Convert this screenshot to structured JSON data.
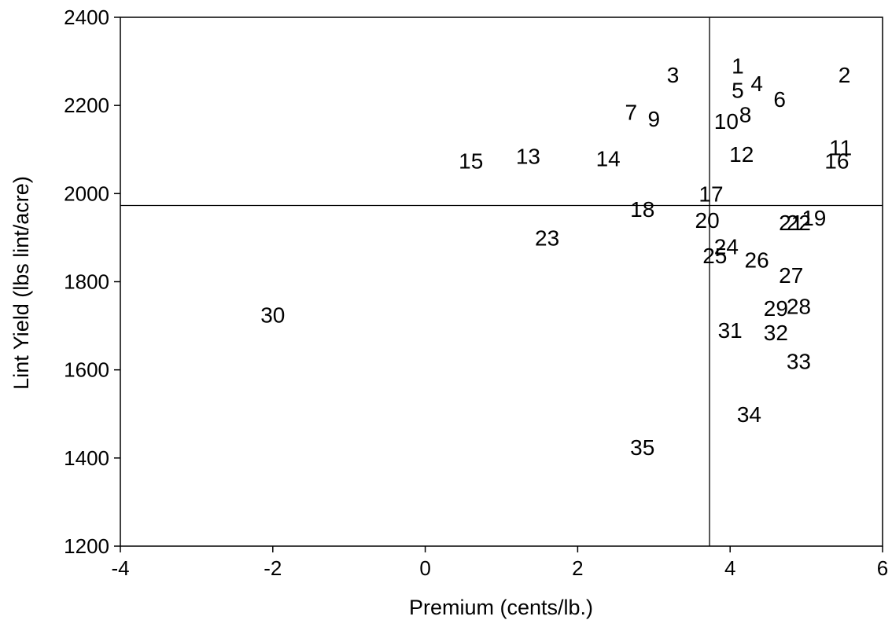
{
  "chart_data": {
    "type": "scatter",
    "title": "",
    "xlabel": "Premium (cents/lb.)",
    "ylabel": "Lint Yield (lbs lint/acre)",
    "xlim": [
      -4,
      6
    ],
    "ylim": [
      1200,
      2400
    ],
    "xticks": [
      -4,
      -2,
      0,
      2,
      4,
      6
    ],
    "yticks": [
      1200,
      1400,
      1600,
      1800,
      2000,
      2200,
      2400
    ],
    "grid": false,
    "reference_lines": {
      "x": 3.73,
      "y": 1973
    },
    "points": [
      {
        "label": "1",
        "x": 4.1,
        "y": 2290
      },
      {
        "label": "2",
        "x": 5.5,
        "y": 2270
      },
      {
        "label": "3",
        "x": 3.25,
        "y": 2270
      },
      {
        "label": "4",
        "x": 4.35,
        "y": 2250
      },
      {
        "label": "5",
        "x": 4.1,
        "y": 2235
      },
      {
        "label": "6",
        "x": 4.65,
        "y": 2215
      },
      {
        "label": "7",
        "x": 2.7,
        "y": 2185
      },
      {
        "label": "8",
        "x": 4.2,
        "y": 2180
      },
      {
        "label": "9",
        "x": 3.0,
        "y": 2170
      },
      {
        "label": "10",
        "x": 3.95,
        "y": 2165
      },
      {
        "label": "11",
        "x": 5.45,
        "y": 2105
      },
      {
        "label": "12",
        "x": 4.15,
        "y": 2090
      },
      {
        "label": "13",
        "x": 1.35,
        "y": 2085
      },
      {
        "label": "14",
        "x": 2.4,
        "y": 2080
      },
      {
        "label": "15",
        "x": 0.6,
        "y": 2075
      },
      {
        "label": "16",
        "x": 5.4,
        "y": 2075
      },
      {
        "label": "17",
        "x": 3.75,
        "y": 2000
      },
      {
        "label": "18",
        "x": 2.85,
        "y": 1965
      },
      {
        "label": "19",
        "x": 5.1,
        "y": 1945
      },
      {
        "label": "20",
        "x": 3.7,
        "y": 1940
      },
      {
        "label": "21",
        "x": 4.8,
        "y": 1935
      },
      {
        "label": "22",
        "x": 4.9,
        "y": 1935
      },
      {
        "label": "23",
        "x": 1.6,
        "y": 1900
      },
      {
        "label": "24",
        "x": 3.95,
        "y": 1880
      },
      {
        "label": "25",
        "x": 3.8,
        "y": 1860
      },
      {
        "label": "26",
        "x": 4.35,
        "y": 1850
      },
      {
        "label": "27",
        "x": 4.8,
        "y": 1815
      },
      {
        "label": "28",
        "x": 4.9,
        "y": 1745
      },
      {
        "label": "29",
        "x": 4.6,
        "y": 1740
      },
      {
        "label": "30",
        "x": -2.0,
        "y": 1725
      },
      {
        "label": "31",
        "x": 4.0,
        "y": 1690
      },
      {
        "label": "32",
        "x": 4.6,
        "y": 1685
      },
      {
        "label": "33",
        "x": 4.9,
        "y": 1620
      },
      {
        "label": "34",
        "x": 4.25,
        "y": 1500
      },
      {
        "label": "35",
        "x": 2.85,
        "y": 1425
      }
    ]
  }
}
